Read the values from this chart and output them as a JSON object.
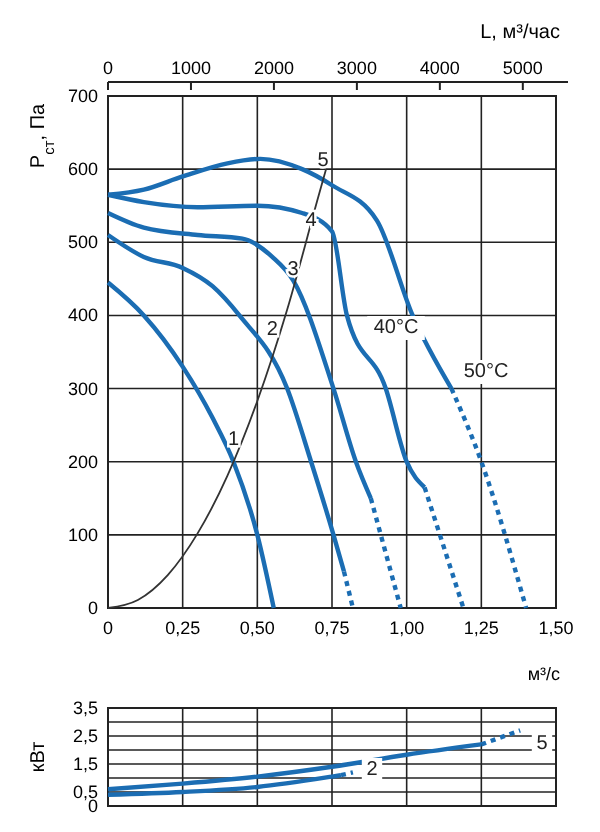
{
  "chart_data": [
    {
      "type": "line",
      "xlabel": "м³/с",
      "ylabel": "P$_{ст}$, Па",
      "x2label": "L, м³/час",
      "xlim": [
        0,
        1.5
      ],
      "ylim": [
        0,
        700
      ],
      "xticks": [
        0,
        {
          "value": 0.25,
          "label": "0,25"
        },
        {
          "value": 0.5,
          "label": "0,50"
        },
        {
          "value": 0.75,
          "label": "0,75"
        },
        {
          "value": 1,
          "label": "1,00"
        },
        {
          "value": 1.25,
          "label": "1,25"
        },
        {
          "value": 1.5,
          "label": "1,50"
        }
      ],
      "yticks": [
        0,
        100,
        200,
        300,
        400,
        500,
        600,
        700
      ],
      "x2lim": [
        0,
        5400
      ],
      "x2ticks": [
        0,
        1000,
        2000,
        3000,
        4000,
        5000
      ],
      "grid": true,
      "line_style": "solid",
      "series": [
        {
          "color": "#1b6db3",
          "x": [
            0,
            0.12,
            0.25,
            0.35,
            0.42,
            0.5,
            0.555
          ],
          "values": [
            445,
            400,
            330,
            260,
            200,
            100,
            0
          ]
        },
        {
          "color": "#1b6db3",
          "x": [
            0,
            0.12,
            0.25,
            0.35,
            0.44,
            0.6,
            0.68,
            0.755,
            0.79
          ],
          "values": [
            510,
            480,
            465,
            440,
            400,
            300,
            200,
            100,
            50
          ]
        },
        {
          "color": "#1b6db3",
          "x": [
            0.79,
            0.82
          ],
          "values": [
            50,
            0
          ],
          "line_style": "dotted"
        },
        {
          "color": "#1b6db3",
          "x": [
            0,
            0.12,
            0.3,
            0.45,
            0.55,
            0.62,
            0.755,
            0.83,
            0.88
          ],
          "values": [
            540,
            520,
            510,
            505,
            480,
            448,
            300,
            200,
            150
          ]
        },
        {
          "color": "#1b6db3",
          "x": [
            0.88,
            0.98
          ],
          "values": [
            150,
            0
          ],
          "line_style": "dotted"
        },
        {
          "color": "#1b6db3",
          "x": [
            0,
            0.12,
            0.3,
            0.5,
            0.65,
            0.75,
            0.8,
            0.93,
            1.0,
            1.06
          ],
          "values": [
            565,
            555,
            548,
            550,
            540,
            515,
            400,
            300,
            200,
            165
          ],
          "line_style": "solid"
        },
        {
          "color": "#1b6db3",
          "x": [
            1.06,
            1.19
          ],
          "values": [
            165,
            0
          ],
          "line_style": "dotted"
        },
        {
          "color": "#1b6db3",
          "x": [
            0,
            0.12,
            0.25,
            0.4,
            0.51,
            0.65,
            0.75,
            0.9,
            1.02,
            1.15
          ],
          "values": [
            565,
            572,
            590,
            608,
            614,
            600,
            578,
            530,
            400,
            300
          ]
        },
        {
          "color": "#1b6db3",
          "x": [
            1.15,
            1.25,
            1.4
          ],
          "values": [
            300,
            200,
            0
          ],
          "line_style": "dotted"
        },
        {
          "color": "#333333",
          "x": [
            0,
            0.1,
            0.2,
            0.3,
            0.4,
            0.5,
            0.6,
            0.7,
            0.73
          ],
          "values": [
            0,
            11,
            45,
            102,
            181,
            283,
            408,
            556,
            600
          ]
        }
      ],
      "annotations": [
        {
          "text": "1",
          "x": 0.42,
          "y": 230
        },
        {
          "text": "2",
          "x": 0.55,
          "y": 380
        },
        {
          "text": "3",
          "x": 0.62,
          "y": 462
        },
        {
          "text": "4",
          "x": 0.68,
          "y": 530
        },
        {
          "text": "5",
          "x": 0.72,
          "y": 612
        },
        "40°C",
        "50°C"
      ]
    },
    {
      "type": "line",
      "ylabel": "кВт",
      "xlim": [
        0,
        1.5
      ],
      "ylim": [
        0,
        3.5
      ],
      "tick_labels": "y",
      "grid": true,
      "xticks": [
        {
          "value": 0,
          "label": null
        },
        {
          "value": 0.25,
          "label": null
        },
        {
          "value": 0.5,
          "label": null
        },
        {
          "value": 0.75,
          "label": null
        },
        {
          "value": 1,
          "label": null
        },
        {
          "value": 1.25,
          "label": null
        },
        {
          "value": 1.5,
          "label": null
        }
      ],
      "yticks": [
        {
          "value": 0,
          "label": "0"
        },
        {
          "value": 0.5,
          "label": "0,5"
        },
        {
          "value": 1,
          "label": null
        },
        {
          "value": 1.5,
          "label": "1,5"
        },
        {
          "value": 2,
          "label": null
        },
        {
          "value": 2.5,
          "label": "2,5"
        },
        {
          "value": 3,
          "label": null
        },
        {
          "value": 3.5,
          "label": "3,5"
        }
      ],
      "series": [
        {
          "color": "#1b6db3",
          "x": [
            0,
            0.25,
            0.5,
            0.75,
            1.0,
            1.25
          ],
          "values": [
            0.6,
            0.8,
            1.05,
            1.4,
            1.83,
            2.2
          ]
        },
        {
          "color": "#1b6db3",
          "x": [
            1.25,
            1.38
          ],
          "values": [
            2.2,
            2.7
          ],
          "line_style": "dotted"
        },
        {
          "color": "#1b6db3",
          "x": [
            0,
            0.25,
            0.5,
            0.75,
            0.78
          ],
          "values": [
            0.4,
            0.5,
            0.68,
            1.05,
            1.1
          ]
        },
        {
          "color": "#1b6db3",
          "x": [
            0.78,
            0.82
          ],
          "values": [
            1.1,
            1.2
          ],
          "line_style": "dotted"
        }
      ],
      "annotations": [
        "5",
        "2"
      ]
    }
  ]
}
